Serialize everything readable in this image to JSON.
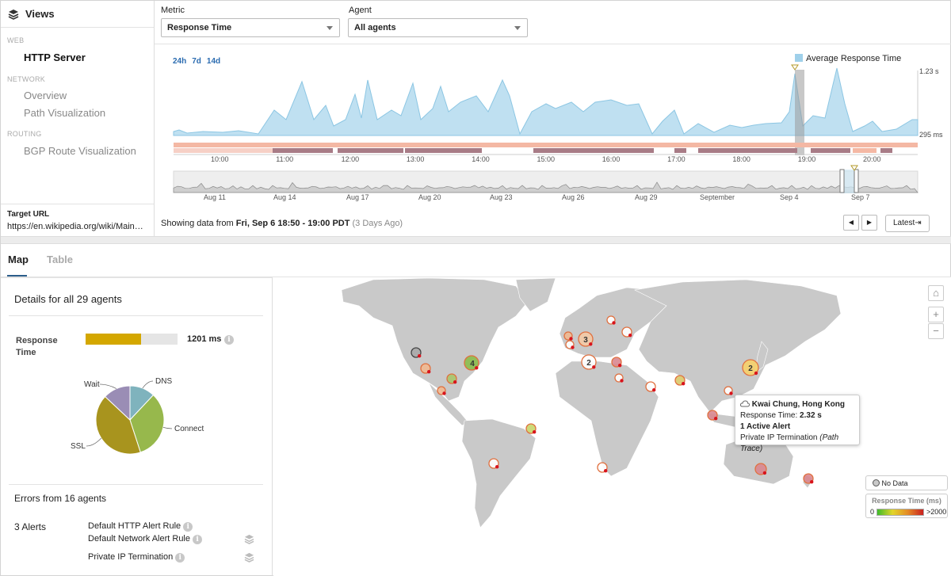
{
  "sidebar": {
    "title": "Views",
    "sections": [
      {
        "label": "WEB",
        "items": [
          {
            "label": "HTTP Server",
            "active": true
          }
        ]
      },
      {
        "label": "NETWORK",
        "items": [
          {
            "label": "Overview"
          },
          {
            "label": "Path Visualization"
          }
        ]
      },
      {
        "label": "ROUTING",
        "items": [
          {
            "label": "BGP Route Visualization"
          }
        ]
      }
    ],
    "target_label": "Target URL",
    "target_value": "https://en.wikipedia.org/wiki/Main_P..."
  },
  "controls": {
    "metric_label": "Metric",
    "metric_value": "Response Time",
    "agent_label": "Agent",
    "agent_value": "All agents"
  },
  "timeline": {
    "ranges": [
      "24h",
      "7d",
      "14d"
    ],
    "legend": "Average Response Time",
    "y_max_label": "1.23 s",
    "y_min_label": "295 ms",
    "hour_ticks": [
      "10:00",
      "11:00",
      "12:00",
      "13:00",
      "14:00",
      "15:00",
      "16:00",
      "17:00",
      "18:00",
      "19:00",
      "20:00"
    ],
    "day_ticks": [
      "Aug 11",
      "Aug 14",
      "Aug 17",
      "Aug 20",
      "Aug 23",
      "Aug 26",
      "Aug 29",
      "September",
      "Sep 4",
      "Sep 7"
    ],
    "showing_prefix": "Showing data from ",
    "showing_range": "Fri, Sep 6 18:50 - 19:00 PDT",
    "showing_ago": "(3 Days Ago)",
    "latest_label": "Latest⇥",
    "prev_glyph": "◀",
    "next_glyph": "▶"
  },
  "tabs": [
    {
      "label": "Map",
      "active": true
    },
    {
      "label": "Table"
    }
  ],
  "details": {
    "heading": "Details for all 29 agents",
    "rt_label_1": "Response",
    "rt_label_2": "Time",
    "rt_value": "1201 ms",
    "rt_fraction": 0.6,
    "pie": {
      "slices": [
        {
          "name": "DNS",
          "value": 12,
          "color": "#7fb3bd"
        },
        {
          "name": "Connect",
          "value": 33,
          "color": "#97b84c"
        },
        {
          "name": "SSL",
          "value": 42,
          "color": "#a8941e"
        },
        {
          "name": "Wait",
          "value": 13,
          "color": "#9a8db5"
        }
      ]
    },
    "errors_heading": "Errors from 16 agents",
    "alerts_label": "3 Alerts",
    "alerts": [
      "Default HTTP Alert Rule",
      "Default Network Alert Rule",
      "Private IP Termination"
    ]
  },
  "map": {
    "tooltip": {
      "location": "Kwai Chung, Hong Kong",
      "rt_prefix": "Response Time: ",
      "rt_value": "2.32 s",
      "active_alert": "1 Active Alert",
      "alert_text": "Private IP Termination ",
      "alert_detail": "(Path Trace)"
    },
    "cluster_labels": [
      "3",
      "2",
      "4",
      "2"
    ],
    "legend_nodata": "No Data",
    "legend_title": "Response Time (ms)",
    "legend_min": "0",
    "legend_max": ">2000",
    "home_glyph": "⌂",
    "zoom_in_glyph": "+",
    "zoom_out_glyph": "−"
  }
}
